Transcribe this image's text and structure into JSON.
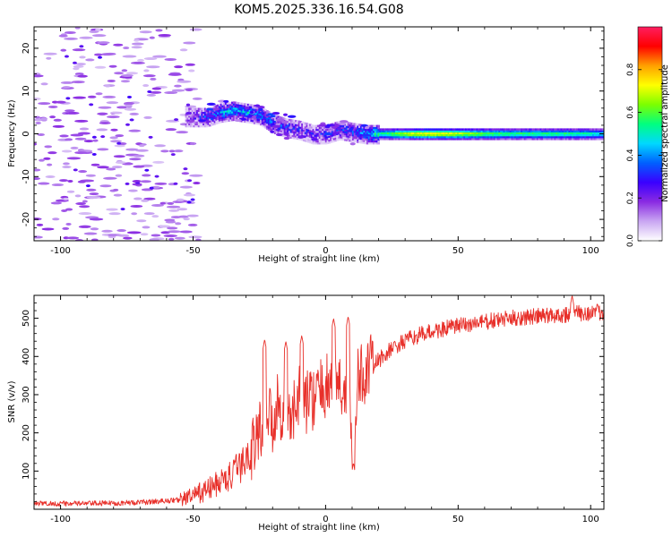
{
  "title": "KOM5.2025.336.16.54.G08",
  "chart_data": [
    {
      "type": "heatmap",
      "name": "spectrogram",
      "xlabel": "Height of straight line (km)",
      "ylabel": "Frequency (Hz)",
      "xlim": [
        -110,
        105
      ],
      "ylim": [
        -25,
        25
      ],
      "xticks": [
        -100,
        -50,
        0,
        50,
        100
      ],
      "yticks": [
        -20,
        -10,
        0,
        10,
        20
      ],
      "colorbar": {
        "label": "Normalized spectral amplitude",
        "range": [
          0,
          1
        ],
        "ticks": [
          0.0,
          0.2,
          0.4,
          0.6,
          0.8
        ],
        "stops": [
          "#ffffff",
          "#c9a6f2",
          "#8a2be2",
          "#3a00ff",
          "#0060ff",
          "#00d8ff",
          "#00ff80",
          "#7cff00",
          "#ffff00",
          "#ffa000",
          "#ff0000",
          "#ff1e60"
        ]
      },
      "ridge": {
        "description_points_x": [
          -52,
          -45,
          -40,
          -35,
          -30,
          -25,
          -20,
          -15,
          -10,
          -5,
          0,
          5,
          10,
          15,
          20,
          30,
          40,
          50,
          60,
          70,
          80,
          90,
          100,
          105
        ],
        "description_points_freq": [
          4,
          4,
          5,
          5.5,
          5,
          4.5,
          2.5,
          1.5,
          1,
          0,
          0,
          1,
          0.5,
          0,
          0,
          0,
          0,
          0,
          0,
          0,
          0,
          0,
          0,
          0
        ],
        "amplitude": [
          0.15,
          0.3,
          0.4,
          0.45,
          0.45,
          0.4,
          0.3,
          0.3,
          0.25,
          0.2,
          0.25,
          0.3,
          0.3,
          0.45,
          0.55,
          0.75,
          0.8,
          0.75,
          0.65,
          0.6,
          0.6,
          0.6,
          0.55,
          0.5
        ]
      }
    },
    {
      "type": "line",
      "name": "snr",
      "xlabel": "Height of straight line (km)",
      "ylabel": "SNR (v/v)",
      "xlim": [
        -110,
        105
      ],
      "ylim": [
        0,
        560
      ],
      "xticks": [
        -100,
        -50,
        0,
        50,
        100
      ],
      "yticks": [
        100,
        200,
        300,
        400,
        500
      ],
      "color": "#e8302a",
      "x": [
        -110,
        -100,
        -90,
        -80,
        -70,
        -60,
        -55,
        -50,
        -45,
        -40,
        -35,
        -30,
        -25,
        -22,
        -20,
        -18,
        -15,
        -12,
        -10,
        -8,
        -5,
        -3,
        0,
        3,
        5,
        7,
        9,
        10,
        12,
        15,
        20,
        25,
        30,
        35,
        40,
        50,
        60,
        70,
        80,
        90,
        100,
        105
      ],
      "y": [
        15,
        15,
        15,
        16,
        18,
        22,
        25,
        35,
        50,
        70,
        90,
        130,
        200,
        260,
        230,
        280,
        240,
        250,
        300,
        280,
        290,
        300,
        320,
        350,
        330,
        300,
        340,
        130,
        340,
        360,
        390,
        420,
        440,
        455,
        465,
        480,
        490,
        500,
        505,
        510,
        515,
        515
      ],
      "spikes": [
        {
          "x": -23,
          "y": 445
        },
        {
          "x": -15,
          "y": 440
        },
        {
          "x": -9,
          "y": 455
        },
        {
          "x": 3,
          "y": 500
        },
        {
          "x": 8.5,
          "y": 505
        },
        {
          "x": 10.5,
          "y": 122
        },
        {
          "x": 93,
          "y": 560
        }
      ]
    }
  ]
}
